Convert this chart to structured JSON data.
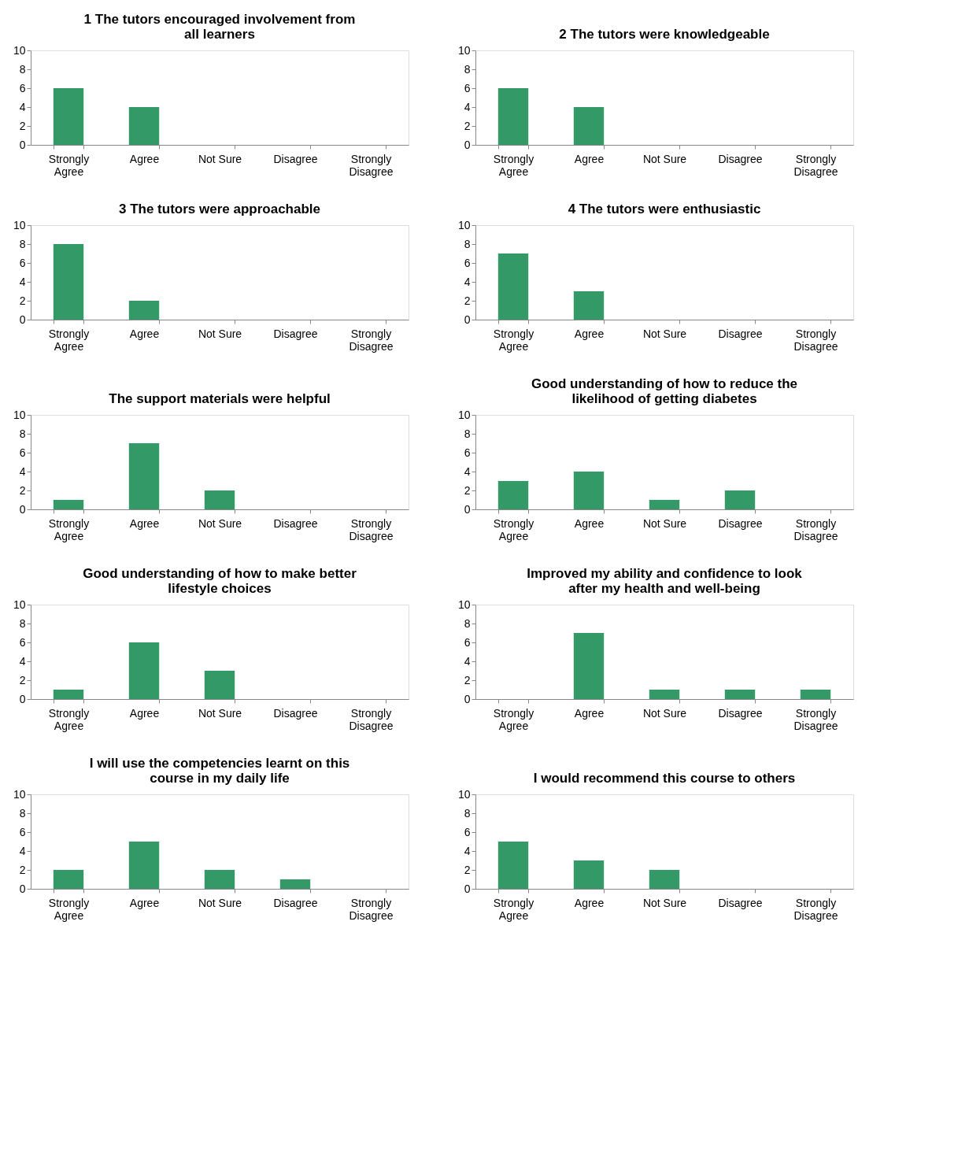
{
  "chart_data": [
    {
      "type": "bar",
      "title": "1 The tutors encouraged involvement from all learners",
      "categories": [
        "Strongly Agree",
        "Agree",
        "Not Sure",
        "Disagree",
        "Strongly Disagree"
      ],
      "values": [
        6,
        4,
        0,
        0,
        0
      ],
      "color": "#339966",
      "ylim": [
        0,
        10
      ],
      "yticks": [
        0,
        2,
        4,
        6,
        8,
        10
      ],
      "grid": false,
      "legend": false
    },
    {
      "type": "bar",
      "title": "2 The tutors were knowledgeable",
      "categories": [
        "Strongly Agree",
        "Agree",
        "Not Sure",
        "Disagree",
        "Strongly Disagree"
      ],
      "values": [
        6,
        4,
        0,
        0,
        0
      ],
      "color": "#339966",
      "ylim": [
        0,
        10
      ],
      "yticks": [
        0,
        2,
        4,
        6,
        8,
        10
      ],
      "grid": false,
      "legend": false
    },
    {
      "type": "bar",
      "title": "3 The tutors were approachable",
      "categories": [
        "Strongly Agree",
        "Agree",
        "Not Sure",
        "Disagree",
        "Strongly Disagree"
      ],
      "values": [
        8,
        2,
        0,
        0,
        0
      ],
      "color": "#339966",
      "ylim": [
        0,
        10
      ],
      "yticks": [
        0,
        2,
        4,
        6,
        8,
        10
      ],
      "grid": false,
      "legend": false
    },
    {
      "type": "bar",
      "title": "4 The tutors were enthusiastic",
      "categories": [
        "Strongly Agree",
        "Agree",
        "Not Sure",
        "Disagree",
        "Strongly Disagree"
      ],
      "values": [
        7,
        3,
        0,
        0,
        0
      ],
      "color": "#339966",
      "ylim": [
        0,
        10
      ],
      "yticks": [
        0,
        2,
        4,
        6,
        8,
        10
      ],
      "grid": false,
      "legend": false
    },
    {
      "type": "bar",
      "title": "The support materials were helpful",
      "categories": [
        "Strongly Agree",
        "Agree",
        "Not Sure",
        "Disagree",
        "Strongly Disagree"
      ],
      "values": [
        1,
        7,
        2,
        0,
        0
      ],
      "color": "#339966",
      "ylim": [
        0,
        10
      ],
      "yticks": [
        0,
        2,
        4,
        6,
        8,
        10
      ],
      "grid": false,
      "legend": false
    },
    {
      "type": "bar",
      "title": "Good understanding of how to reduce the likelihood of getting diabetes",
      "categories": [
        "Strongly Agree",
        "Agree",
        "Not Sure",
        "Disagree",
        "Strongly Disagree"
      ],
      "values": [
        3,
        4,
        1,
        2,
        0
      ],
      "color": "#339966",
      "ylim": [
        0,
        10
      ],
      "yticks": [
        0,
        2,
        4,
        6,
        8,
        10
      ],
      "grid": false,
      "legend": false
    },
    {
      "type": "bar",
      "title": "Good understanding of how to make better lifestyle choices",
      "categories": [
        "Strongly Agree",
        "Agree",
        "Not Sure",
        "Disagree",
        "Strongly Disagree"
      ],
      "values": [
        1,
        6,
        3,
        0,
        0
      ],
      "color": "#339966",
      "ylim": [
        0,
        10
      ],
      "yticks": [
        0,
        2,
        4,
        6,
        8,
        10
      ],
      "grid": false,
      "legend": false
    },
    {
      "type": "bar",
      "title": "Improved my ability and confidence to look after my health and well-being",
      "categories": [
        "Strongly Agree",
        "Agree",
        "Not Sure",
        "Disagree",
        "Strongly Disagree"
      ],
      "values": [
        0,
        7,
        1,
        1,
        1
      ],
      "color": "#339966",
      "ylim": [
        0,
        10
      ],
      "yticks": [
        0,
        2,
        4,
        6,
        8,
        10
      ],
      "grid": false,
      "legend": false
    },
    {
      "type": "bar",
      "title": "I will use the competencies learnt on this course in my daily life",
      "categories": [
        "Strongly Agree",
        "Agree",
        "Not Sure",
        "Disagree",
        "Strongly Disagree"
      ],
      "values": [
        2,
        5,
        2,
        1,
        0
      ],
      "color": "#339966",
      "ylim": [
        0,
        10
      ],
      "yticks": [
        0,
        2,
        4,
        6,
        8,
        10
      ],
      "grid": false,
      "legend": false
    },
    {
      "type": "bar",
      "title": "I would recommend this course to others",
      "categories": [
        "Strongly Agree",
        "Agree",
        "Not Sure",
        "Disagree",
        "Strongly Disagree"
      ],
      "values": [
        5,
        3,
        2,
        0,
        0
      ],
      "color": "#339966",
      "ylim": [
        0,
        10
      ],
      "yticks": [
        0,
        2,
        4,
        6,
        8,
        10
      ],
      "grid": false,
      "legend": false
    }
  ]
}
